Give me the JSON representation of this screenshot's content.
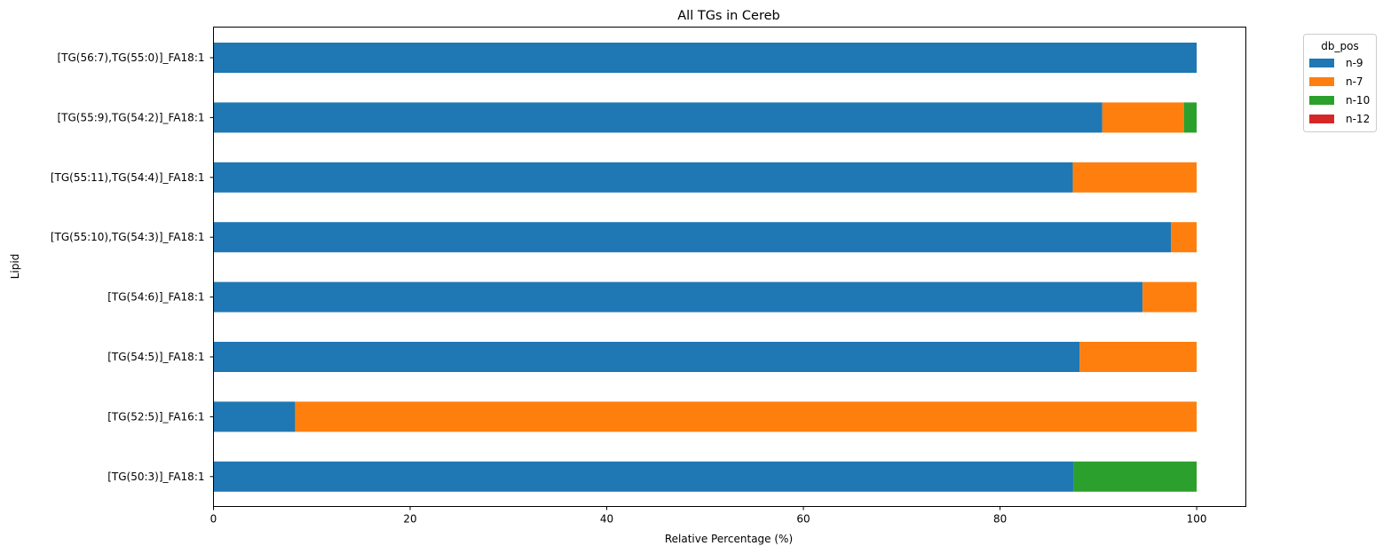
{
  "chart_data": {
    "type": "bar",
    "orientation": "horizontal",
    "stacked": true,
    "title": "All TGs in Cereb",
    "xlabel": "Relative Percentage (%)",
    "ylabel": "Lipid",
    "xlim": [
      0,
      105
    ],
    "xticks": [
      0,
      20,
      40,
      60,
      80,
      100
    ],
    "grid": false,
    "legend": {
      "title": "db_pos",
      "placement": "outside top-right"
    },
    "categories": [
      "[TG(56:7),TG(55:0)]_FA18:1",
      "[TG(55:9),TG(54:2)]_FA18:1",
      "[TG(55:11),TG(54:4)]_FA18:1",
      "[TG(55:10),TG(54:3)]_FA18:1",
      "[TG(54:6)]_FA18:1",
      "[TG(54:5)]_FA18:1",
      "[TG(52:5)]_FA16:1",
      "[TG(50:3)]_FA18:1"
    ],
    "series": [
      {
        "name": "n-9",
        "color": "#1f77b4",
        "values": [
          100,
          90.4,
          87.4,
          97.4,
          94.5,
          88.1,
          8.3,
          87.5
        ]
      },
      {
        "name": "n-7",
        "color": "#ff7f0e",
        "values": [
          0,
          8.3,
          12.6,
          2.6,
          5.5,
          11.9,
          91.7,
          0
        ]
      },
      {
        "name": "n-10",
        "color": "#2ca02c",
        "values": [
          0,
          1.3,
          0,
          0,
          0,
          0,
          0,
          12.5
        ]
      },
      {
        "name": "n-12",
        "color": "#d62728",
        "values": [
          0,
          0,
          0,
          0,
          0,
          0,
          0,
          0
        ]
      }
    ]
  }
}
